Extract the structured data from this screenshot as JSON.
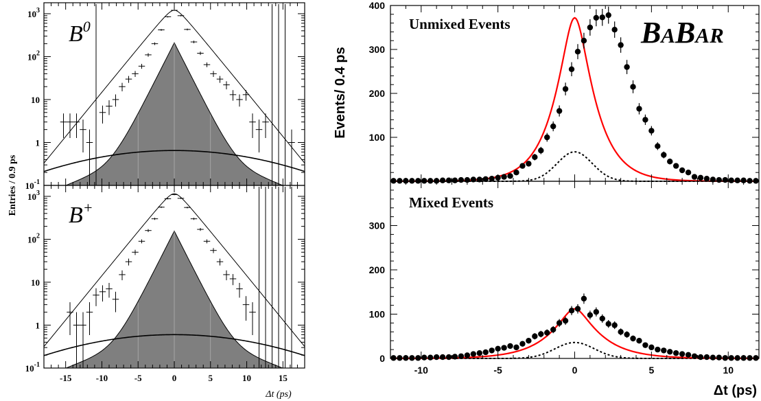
{
  "chart_data": [
    {
      "type": "scatter",
      "title": "B0",
      "title_main": "B",
      "title_sup": "0",
      "xlim": [
        -18,
        18
      ],
      "ylim": [
        0.1,
        1800
      ],
      "yscale": "log",
      "ylabel": "Entries / 0.9 ps",
      "xlabel": "",
      "y_ticks": [
        {
          "base": "10",
          "exp": "-1"
        },
        {
          "base": "1",
          "exp": ""
        },
        {
          "base": "10",
          "exp": ""
        },
        {
          "base": "10",
          "exp": "2"
        },
        {
          "base": "10",
          "exp": "3"
        }
      ],
      "x": [
        -15.3,
        -14.4,
        -13.5,
        -12.6,
        -11.7,
        -10.8,
        -9.9,
        -9.0,
        -8.1,
        -7.2,
        -6.3,
        -5.4,
        -4.5,
        -3.6,
        -2.7,
        -1.8,
        -0.9,
        0.0,
        0.9,
        1.8,
        2.7,
        3.6,
        4.5,
        5.4,
        6.3,
        7.2,
        8.1,
        9.0,
        9.9,
        10.8,
        11.7,
        12.6,
        13.5,
        14.4,
        15.3,
        16.2
      ],
      "y": [
        3,
        3,
        3,
        2,
        1,
        0,
        5,
        7,
        10,
        20,
        30,
        40,
        60,
        110,
        200,
        420,
        850,
        1200,
        900,
        430,
        220,
        120,
        65,
        40,
        30,
        22,
        13,
        10,
        13,
        3,
        2,
        3,
        0,
        0,
        0,
        1
      ],
      "total_amplitude": 1200,
      "total_tau": 2.1,
      "shaded_amplitude": 210,
      "shaded_tau": 1.3,
      "shaded_plateau": 0.3,
      "broad_amplitude": 0.65,
      "broad_sigma": 12
    },
    {
      "type": "scatter",
      "title": "B+",
      "title_main": "B",
      "title_sup": "+",
      "xlim": [
        -18,
        18
      ],
      "ylim": [
        0.1,
        1800
      ],
      "yscale": "log",
      "ylabel": "Entries / 0.9 ps",
      "xlabel": "Δt (ps)",
      "x_ticks": [
        "-15",
        "-10",
        "-5",
        "0",
        "5",
        "10",
        "15"
      ],
      "y_ticks": [
        {
          "base": "10",
          "exp": "-1"
        },
        {
          "base": "1",
          "exp": ""
        },
        {
          "base": "10",
          "exp": ""
        },
        {
          "base": "10",
          "exp": "2"
        },
        {
          "base": "10",
          "exp": "3"
        }
      ],
      "x": [
        -14.4,
        -13.5,
        -12.6,
        -11.7,
        -10.8,
        -9.9,
        -9.0,
        -8.1,
        -7.2,
        -6.3,
        -5.4,
        -4.5,
        -3.6,
        -2.7,
        -1.8,
        -0.9,
        0.0,
        0.9,
        1.8,
        2.7,
        3.6,
        4.5,
        5.4,
        6.3,
        7.2,
        8.1,
        9.0,
        9.9,
        10.8,
        11.7,
        12.6,
        13.5,
        14.4,
        15.3,
        16.2
      ],
      "y": [
        2,
        1,
        1,
        2,
        5,
        6,
        7,
        4,
        15,
        30,
        50,
        90,
        160,
        300,
        560,
        880,
        1100,
        900,
        550,
        300,
        170,
        90,
        55,
        30,
        15,
        12,
        7,
        3,
        2,
        0,
        0,
        0,
        0,
        0,
        0
      ],
      "total_amplitude": 1150,
      "total_tau": 2.1,
      "shaded_amplitude": 155,
      "shaded_tau": 1.3,
      "shaded_plateau": 0.3,
      "broad_amplitude": 0.6,
      "broad_sigma": 12
    },
    {
      "type": "scatter",
      "title": "Unmixed Events",
      "xlim": [
        -12,
        12
      ],
      "ylim": [
        0,
        400
      ],
      "ylabel": "Events/ 0.4 ps",
      "xlabel": "",
      "y_ticks": [
        "100",
        "200",
        "300",
        "400"
      ],
      "x": [
        -11.8,
        -11.4,
        -11.0,
        -10.6,
        -10.2,
        -9.8,
        -9.4,
        -9.0,
        -8.6,
        -8.2,
        -7.8,
        -7.4,
        -7.0,
        -6.6,
        -6.2,
        -5.8,
        -5.4,
        -5.0,
        -4.6,
        -4.2,
        -3.8,
        -3.4,
        -3.0,
        -2.6,
        -2.2,
        -1.8,
        -1.4,
        -1.0,
        -0.6,
        -0.2,
        0.2,
        0.6,
        1.0,
        1.4,
        1.8,
        2.2,
        2.6,
        3.0,
        3.4,
        3.8,
        4.2,
        4.6,
        5.0,
        5.4,
        5.8,
        6.2,
        6.6,
        7.0,
        7.4,
        7.8,
        8.2,
        8.6,
        9.0,
        9.4,
        9.8,
        10.2,
        10.6,
        11.0,
        11.4,
        11.8
      ],
      "y": [
        1,
        1,
        1,
        1,
        1,
        1,
        1,
        1,
        2,
        2,
        2,
        3,
        3,
        4,
        4,
        5,
        6,
        8,
        10,
        12,
        20,
        35,
        40,
        55,
        70,
        100,
        125,
        160,
        210,
        255,
        295,
        320,
        350,
        372,
        373,
        378,
        345,
        310,
        260,
        215,
        165,
        140,
        115,
        80,
        60,
        45,
        35,
        25,
        20,
        10,
        8,
        6,
        4,
        3,
        3,
        2,
        2,
        2,
        1,
        1
      ],
      "fit_amplitude": 372,
      "fit_tau": 1.25,
      "dashed_amplitude": 67,
      "dashed_sigma": 0.85
    },
    {
      "type": "scatter",
      "title": "Mixed Events",
      "xlim": [
        -12,
        12
      ],
      "ylim": [
        0,
        400
      ],
      "ylabel": "",
      "xlabel": "Δt (ps)",
      "x_ticks": [
        "-10",
        "-5",
        "0",
        "5",
        "10"
      ],
      "y_ticks": [
        "0",
        "100",
        "200",
        "300"
      ],
      "x": [
        -11.8,
        -11.4,
        -11.0,
        -10.6,
        -10.2,
        -9.8,
        -9.4,
        -9.0,
        -8.6,
        -8.2,
        -7.8,
        -7.4,
        -7.0,
        -6.6,
        -6.2,
        -5.8,
        -5.4,
        -5.0,
        -4.6,
        -4.2,
        -3.8,
        -3.4,
        -3.0,
        -2.6,
        -2.2,
        -1.8,
        -1.4,
        -1.0,
        -0.6,
        -0.2,
        0.2,
        0.6,
        1.0,
        1.4,
        1.8,
        2.2,
        2.6,
        3.0,
        3.4,
        3.8,
        4.2,
        4.6,
        5.0,
        5.4,
        5.8,
        6.2,
        6.6,
        7.0,
        7.4,
        7.8,
        8.2,
        8.6,
        9.0,
        9.4,
        9.8,
        10.2,
        10.6,
        11.0,
        11.4,
        11.8
      ],
      "y": [
        1,
        1,
        1,
        1,
        1,
        2,
        2,
        3,
        3,
        3,
        4,
        5,
        7,
        10,
        12,
        14,
        18,
        22,
        24,
        28,
        25,
        33,
        40,
        50,
        55,
        58,
        65,
        80,
        85,
        108,
        112,
        135,
        98,
        105,
        90,
        78,
        75,
        60,
        54,
        45,
        40,
        30,
        25,
        20,
        18,
        15,
        12,
        10,
        8,
        5,
        3,
        3,
        2,
        2,
        1,
        1,
        1,
        1,
        1,
        1
      ],
      "fit_amplitude": 112,
      "fit_tau": 1.65,
      "dashed_amplitude": 36,
      "dashed_sigma": 0.95
    }
  ],
  "logo": {
    "first_big": "B",
    "first_small": "A",
    "second_big": "B",
    "second_small": "AR"
  },
  "colors": {
    "shaded": "#7f7f7f",
    "fit": "#ff0000",
    "axis": "#000000"
  }
}
